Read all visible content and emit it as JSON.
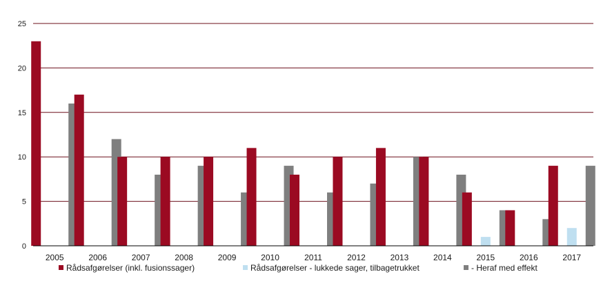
{
  "chart_data": {
    "type": "bar",
    "title": "",
    "xlabel": "",
    "ylabel": "",
    "ylim": [
      0,
      25
    ],
    "yticks": [
      0,
      5,
      10,
      15,
      20,
      25
    ],
    "grid": true,
    "legend_position": "bottom",
    "categories": [
      "2005",
      "2006",
      "2007",
      "2008",
      "2009",
      "2010",
      "2011",
      "2012",
      "2013",
      "2014",
      "2015",
      "2016",
      "2017"
    ],
    "series": [
      {
        "name": "Rådsafgørelser (inkl. fusionssager)",
        "color": "#9b0a22",
        "values": [
          23,
          17,
          10,
          10,
          10,
          11,
          8,
          10,
          11,
          10,
          6,
          4,
          9
        ]
      },
      {
        "name": "Rådsafgørelser - lukkede sager, tilbagetrukket",
        "color": "#bfdff0",
        "values": [
          0,
          0,
          0,
          0,
          0,
          0,
          0,
          0,
          0,
          0,
          1,
          0,
          2
        ]
      },
      {
        "name": "- Heraf med effekt",
        "color": "#7f7f7f",
        "values": [
          16,
          12,
          8,
          9,
          6,
          9,
          6,
          7,
          10,
          8,
          4,
          3,
          9
        ]
      }
    ],
    "colors": {
      "gridline": "#6b0f1a",
      "axis": "#000000"
    }
  }
}
